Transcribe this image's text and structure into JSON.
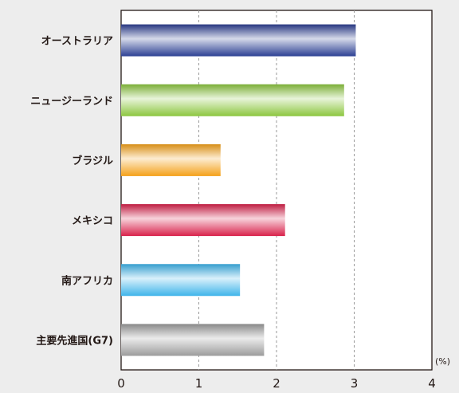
{
  "chart_data": {
    "type": "bar",
    "orientation": "horizontal",
    "title": "",
    "xlabel": "",
    "ylabel": "",
    "unit": "(%)",
    "categories": [
      "オーストラリア",
      "ニュージーランド",
      "ブラジル",
      "メキシコ",
      "南アフリカ",
      "主要先進国(G7)"
    ],
    "values": [
      3.02,
      2.87,
      1.28,
      2.11,
      1.53,
      1.84
    ],
    "xlim": [
      0,
      4
    ],
    "ticks": [
      "0",
      "1",
      "2",
      "3",
      "4"
    ],
    "grid": "vertical dashed",
    "legend": "none",
    "colors": [
      "#2c3f93",
      "#8cc63f",
      "#f4a11a",
      "#d9224b",
      "#3fb4ea",
      "#9c9c9c"
    ]
  }
}
